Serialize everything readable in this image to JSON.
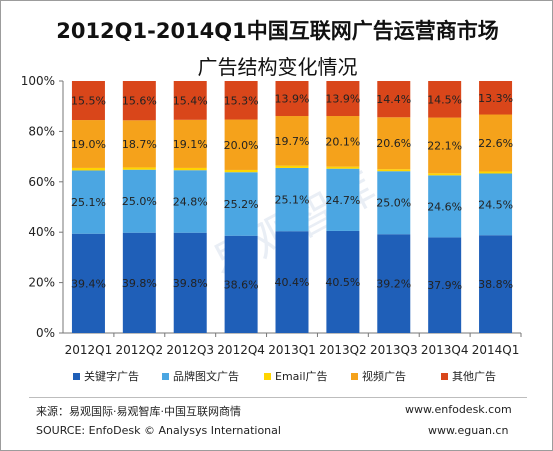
{
  "title": "2012Q1-2014Q1中国互联网广告运营商市场",
  "subtitle": "广告结构变化情况",
  "watermark": "易观智库",
  "chart_data": {
    "type": "bar",
    "stacked": true,
    "normalized": true,
    "categories": [
      "2012Q1",
      "2012Q2",
      "2012Q3",
      "2012Q4",
      "2013Q1",
      "2013Q2",
      "2013Q3",
      "2013Q4",
      "2014Q1"
    ],
    "series": [
      {
        "name": "关键字广告",
        "color": "#1f5fb8",
        "values": [
          39.4,
          39.8,
          39.8,
          38.6,
          40.4,
          40.5,
          39.2,
          37.9,
          38.8
        ],
        "labels": [
          "39.4%",
          "39.8%",
          "39.8%",
          "38.6%",
          "40.4%",
          "40.5%",
          "39.2%",
          "37.9%",
          "38.8%"
        ]
      },
      {
        "name": "品牌图文广告",
        "color": "#4ba6e2",
        "values": [
          25.1,
          25.0,
          24.8,
          25.2,
          25.1,
          24.7,
          25.0,
          24.6,
          24.5
        ],
        "labels": [
          "25.1%",
          "25.0%",
          "24.8%",
          "25.2%",
          "25.1%",
          "24.7%",
          "25.0%",
          "24.6%",
          "24.5%"
        ]
      },
      {
        "name": "Email广告",
        "color": "#ffd500",
        "values": [
          1.0,
          0.9,
          0.9,
          0.9,
          0.9,
          0.8,
          0.8,
          0.8,
          0.8
        ],
        "labels": [
          "1.0%",
          "0.9%",
          "0.9%",
          "0.9%",
          "0.9%",
          "0.8%",
          "0.8%",
          "0.8%",
          "0.8%"
        ]
      },
      {
        "name": "视频广告",
        "color": "#f5a21b",
        "values": [
          19.0,
          18.7,
          19.1,
          20.0,
          19.7,
          20.1,
          20.6,
          22.1,
          22.6
        ],
        "labels": [
          "19.0%",
          "18.7%",
          "19.1%",
          "20.0%",
          "19.7%",
          "20.1%",
          "20.6%",
          "22.1%",
          "22.6%"
        ]
      },
      {
        "name": "其他广告",
        "color": "#d9461a",
        "values": [
          15.5,
          15.6,
          15.4,
          15.3,
          13.9,
          13.9,
          14.4,
          14.5,
          13.3
        ],
        "labels": [
          "15.5%",
          "15.6%",
          "15.4%",
          "15.3%",
          "13.9%",
          "13.9%",
          "14.4%",
          "14.5%",
          "13.3%"
        ]
      }
    ],
    "yticks": [
      "0%",
      "20%",
      "40%",
      "60%",
      "80%",
      "100%"
    ],
    "ylim": [
      0,
      100
    ],
    "grid": false,
    "legend_position": "bottom"
  },
  "footer": {
    "source_cn": "来源：易观国际·易观智库·中国互联网商情",
    "source_en": "SOURCE: EnfoDesk © Analysys International",
    "site1": "www.enfodesk.com",
    "site2": "www.eguan.cn"
  }
}
